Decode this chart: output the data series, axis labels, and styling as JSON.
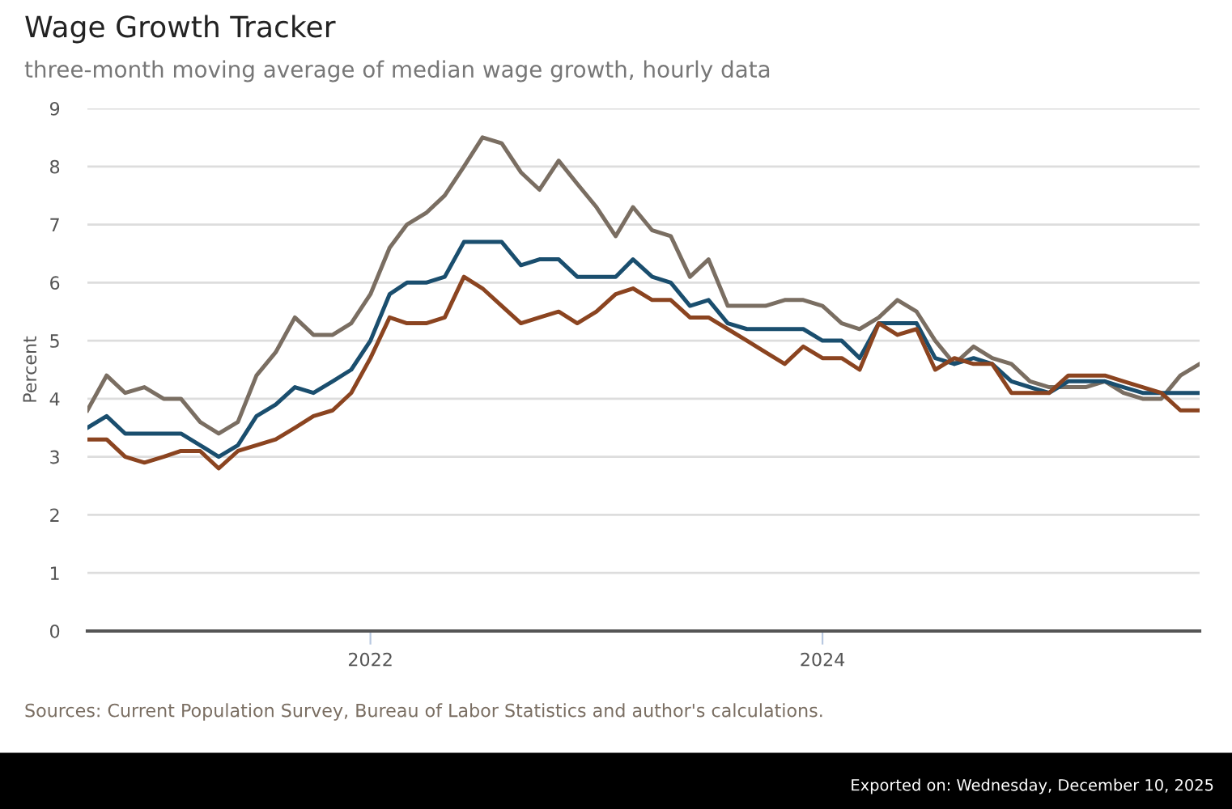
{
  "chart_data": {
    "type": "line",
    "title": "Wage Growth Tracker",
    "subtitle": "three-month moving average of median wage growth, hourly data",
    "ylabel": "Percent",
    "x": [
      "2020-10",
      "2020-11",
      "2020-12",
      "2021-01",
      "2021-02",
      "2021-03",
      "2021-04",
      "2021-05",
      "2021-06",
      "2021-07",
      "2021-08",
      "2021-09",
      "2021-10",
      "2021-11",
      "2021-12",
      "2022-01",
      "2022-02",
      "2022-03",
      "2022-04",
      "2022-05",
      "2022-06",
      "2022-07",
      "2022-08",
      "2022-09",
      "2022-10",
      "2022-11",
      "2022-12",
      "2023-01",
      "2023-02",
      "2023-03",
      "2023-04",
      "2023-05",
      "2023-06",
      "2023-07",
      "2023-08",
      "2023-09",
      "2023-10",
      "2023-11",
      "2023-12",
      "2024-01",
      "2024-02",
      "2024-03",
      "2024-04",
      "2024-05",
      "2024-06",
      "2024-07",
      "2024-08",
      "2024-09",
      "2024-10",
      "2024-11",
      "2024-12",
      "2025-01",
      "2025-02",
      "2025-03",
      "2025-04",
      "2025-05",
      "2025-06",
      "2025-07",
      "2025-08",
      "2025-09"
    ],
    "series": [
      {
        "color": "#7a6e62",
        "values": [
          3.8,
          4.4,
          4.1,
          4.2,
          4.0,
          4.0,
          3.6,
          3.4,
          3.6,
          4.4,
          4.8,
          5.4,
          5.1,
          5.1,
          5.3,
          5.8,
          6.6,
          7.0,
          7.2,
          7.5,
          8.0,
          8.5,
          8.4,
          7.9,
          7.6,
          8.1,
          7.7,
          7.3,
          6.8,
          7.3,
          6.9,
          6.8,
          6.1,
          6.4,
          5.6,
          5.6,
          5.6,
          5.7,
          5.7,
          5.6,
          5.3,
          5.2,
          5.4,
          5.7,
          5.5,
          5.0,
          4.6,
          4.9,
          4.7,
          4.6,
          4.3,
          4.2,
          4.2,
          4.2,
          4.3,
          4.1,
          4.0,
          4.0,
          4.4,
          4.6
        ]
      },
      {
        "color": "#1a4e6e",
        "values": [
          3.5,
          3.7,
          3.4,
          3.4,
          3.4,
          3.4,
          3.2,
          3.0,
          3.2,
          3.7,
          3.9,
          4.2,
          4.1,
          4.3,
          4.5,
          5.0,
          5.8,
          6.0,
          6.0,
          6.1,
          6.7,
          6.7,
          6.7,
          6.3,
          6.4,
          6.4,
          6.1,
          6.1,
          6.1,
          6.4,
          6.1,
          6.0,
          5.6,
          5.7,
          5.3,
          5.2,
          5.2,
          5.2,
          5.2,
          5.0,
          5.0,
          4.7,
          5.3,
          5.3,
          5.3,
          4.7,
          4.6,
          4.7,
          4.6,
          4.3,
          4.2,
          4.1,
          4.3,
          4.3,
          4.3,
          4.2,
          4.1,
          4.1,
          4.1,
          4.1
        ]
      },
      {
        "color": "#8b4420",
        "values": [
          3.3,
          3.3,
          3.0,
          2.9,
          3.0,
          3.1,
          3.1,
          2.8,
          3.1,
          3.2,
          3.3,
          3.5,
          3.7,
          3.8,
          4.1,
          4.7,
          5.4,
          5.3,
          5.3,
          5.4,
          6.1,
          5.9,
          5.6,
          5.3,
          5.4,
          5.5,
          5.3,
          5.5,
          5.8,
          5.9,
          5.7,
          5.7,
          5.4,
          5.4,
          5.2,
          5.0,
          4.8,
          4.6,
          4.9,
          4.7,
          4.7,
          4.5,
          5.3,
          5.1,
          5.2,
          4.5,
          4.7,
          4.6,
          4.6,
          4.1,
          4.1,
          4.1,
          4.4,
          4.4,
          4.4,
          4.3,
          4.2,
          4.1,
          3.8,
          3.8
        ]
      }
    ],
    "xlim": [
      "2020-10",
      "2025-09"
    ],
    "xticks": [
      {
        "value": "2022-01",
        "label": "2022"
      },
      {
        "value": "2024-01",
        "label": "2024"
      }
    ],
    "ylim": [
      0,
      9
    ],
    "yticks": [
      0,
      1,
      2,
      3,
      4,
      5,
      6,
      7,
      8,
      9
    ],
    "grid": "y",
    "annotations": [
      "Sources: Current Population Survey, Bureau of Labor Statistics and author's calculations.",
      "Exported on: Wednesday, December 10, 2025"
    ]
  }
}
